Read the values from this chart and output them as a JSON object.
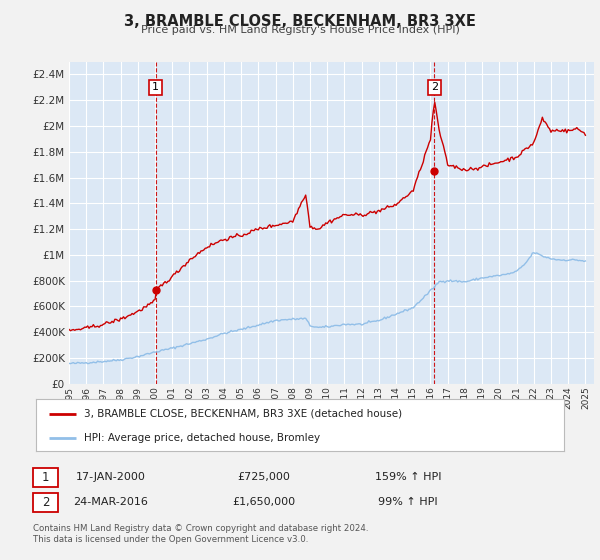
{
  "title": "3, BRAMBLE CLOSE, BECKENHAM, BR3 3XE",
  "subtitle": "Price paid vs. HM Land Registry's House Price Index (HPI)",
  "background_color": "#f2f2f2",
  "plot_bg_color": "#dce8f5",
  "grid_color": "#ffffff",
  "hpi_color": "#92bfe8",
  "price_color": "#cc0000",
  "ylim": [
    0,
    2500000
  ],
  "yticks": [
    0,
    200000,
    400000,
    600000,
    800000,
    1000000,
    1200000,
    1400000,
    1600000,
    1800000,
    2000000,
    2200000,
    2400000
  ],
  "ytick_labels": [
    "£0",
    "£200K",
    "£400K",
    "£600K",
    "£800K",
    "£1M",
    "£1.2M",
    "£1.4M",
    "£1.6M",
    "£1.8M",
    "£2M",
    "£2.2M",
    "£2.4M"
  ],
  "xlim_start": 1995.0,
  "xlim_end": 2025.5,
  "annotation1": {
    "label": "1",
    "date_str": "17-JAN-2000",
    "x": 2000.04,
    "price": 725000,
    "price_str": "£725,000",
    "pct": "159%",
    "direction": "↑"
  },
  "annotation2": {
    "label": "2",
    "date_str": "24-MAR-2016",
    "x": 2016.23,
    "price": 1650000,
    "price_str": "£1,650,000",
    "pct": "99%",
    "direction": "↑"
  },
  "legend_label1": "3, BRAMBLE CLOSE, BECKENHAM, BR3 3XE (detached house)",
  "legend_label2": "HPI: Average price, detached house, Bromley",
  "footer1": "Contains HM Land Registry data © Crown copyright and database right 2024.",
  "footer2": "This data is licensed under the Open Government Licence v3.0."
}
